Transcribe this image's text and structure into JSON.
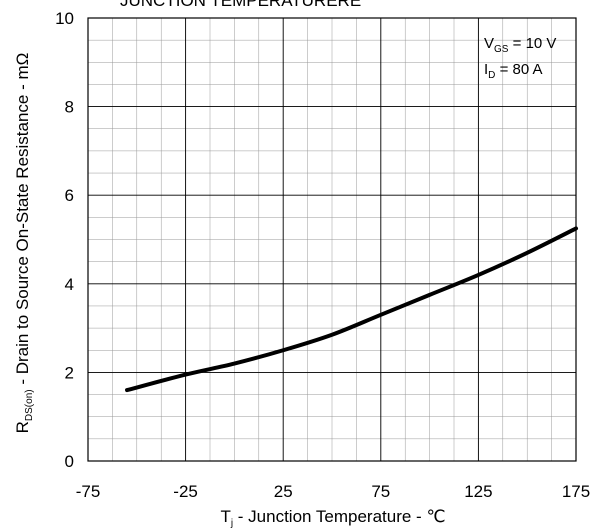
{
  "chart_data": {
    "type": "line",
    "title": "JUNCTION TEMPERATURERE",
    "xlabel": {
      "main": "T",
      "sub": "j",
      "rest": " - Junction Temperature - ℃"
    },
    "ylabel": {
      "main": "R",
      "sub": "DS(on)",
      "rest": " - Drain to Source On-State Resistance - mΩ"
    },
    "xlim": [
      -75,
      175
    ],
    "ylim": [
      0,
      10
    ],
    "x_ticks": [
      "-75",
      "-25",
      "25",
      "75",
      "125",
      "175"
    ],
    "y_ticks": [
      "0",
      "2",
      "4",
      "6",
      "8",
      "10"
    ],
    "grid": true,
    "annotation": {
      "line1": {
        "main": "V",
        "sub": "GS",
        "rest": " = 10 V"
      },
      "line2": {
        "main": "I",
        "sub": "D",
        "rest": " = 80 A"
      }
    },
    "series": [
      {
        "x": [
          -55,
          -25,
          0,
          25,
          50,
          75,
          100,
          125,
          150,
          175
        ],
        "values": [
          1.6,
          1.95,
          2.2,
          2.5,
          2.85,
          3.3,
          3.75,
          4.2,
          4.7,
          5.25
        ]
      }
    ]
  }
}
